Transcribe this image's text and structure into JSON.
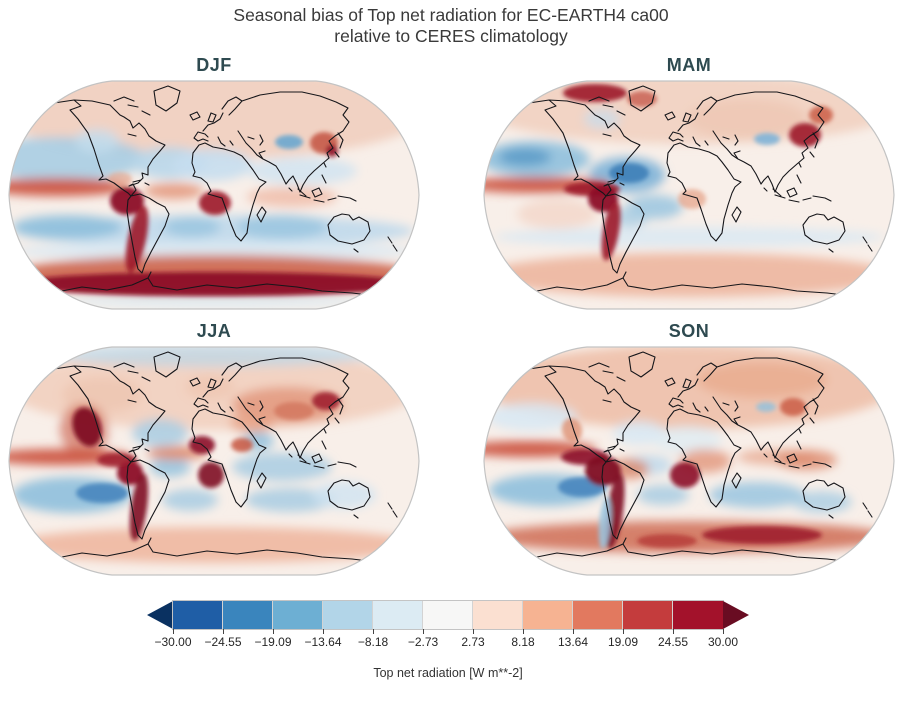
{
  "title": {
    "line1": "Seasonal bias of Top net radiation for EC-EARTH4 ca00",
    "line2": "relative to CERES climatology"
  },
  "colors": {
    "panel_label": "#2e4a50",
    "title_text": "#3a3a3a",
    "map_base": "#f8efe9",
    "map_outline": "#c3c3c3",
    "coastline": "#16161a"
  },
  "chart_data": {
    "type": "heatmap",
    "subtype": "filled-contour-world-maps",
    "projection": "Robinson",
    "title": "Seasonal bias of Top net radiation for EC-EARTH4 ca00 relative to CERES climatology",
    "legend_position": "bottom",
    "colorbar": {
      "label": "Top net radiation [W m**-2]",
      "tick_labels": [
        "−30.00",
        "−24.55",
        "−19.09",
        "−13.64",
        "−8.18",
        "−2.73",
        "2.73",
        "8.18",
        "13.64",
        "19.09",
        "24.55",
        "30.00"
      ],
      "levels": [
        -30.0,
        -24.55,
        -19.09,
        -13.64,
        -8.18,
        -2.73,
        2.73,
        8.18,
        13.64,
        19.09,
        24.55,
        30.0
      ],
      "segment_colors": [
        "#1f5ea6",
        "#3a85bd",
        "#6dafd3",
        "#b2d5e8",
        "#dcebf3",
        "#f7f7f6",
        "#fbe0d1",
        "#f6b392",
        "#e2795f",
        "#c43c3d",
        "#a3122b"
      ],
      "extend_left_color": "#0a3161",
      "extend_right_color": "#690c22"
    },
    "panels": [
      {
        "label": "DJF",
        "features": [
          [
            212,
            35,
            210,
            45,
            0,
            "#f0cdbc",
            0.85,
            0
          ],
          [
            60,
            80,
            85,
            22,
            0,
            "#a9cde3",
            0.9,
            0
          ],
          [
            168,
            84,
            38,
            16,
            0,
            "#b9d7ea",
            0.9,
            0
          ],
          [
            210,
            86,
            40,
            16,
            0,
            "#c7def0",
            0.9,
            0
          ],
          [
            300,
            92,
            55,
            14,
            0,
            "#cfe3f1",
            0.8,
            0
          ],
          [
            212,
            152,
            200,
            16,
            0,
            "#bcd8ec",
            0.85,
            0
          ],
          [
            65,
            148,
            55,
            12,
            0,
            "#8fc0dd",
            0.9,
            0
          ],
          [
            190,
            148,
            28,
            10,
            0,
            "#9ac6e0",
            0.85,
            0
          ],
          [
            280,
            148,
            45,
            12,
            0,
            "#9ac6e0",
            0.85,
            0
          ],
          [
            212,
            172,
            200,
            10,
            0,
            "#d8e9f4",
            0.8,
            0
          ],
          [
            212,
            196,
            205,
            20,
            0,
            "#cf6a52",
            0.95,
            0
          ],
          [
            55,
            108,
            72,
            9,
            0,
            "#cc5440",
            0.95,
            0
          ],
          [
            172,
            112,
            30,
            8,
            0,
            "#e39579",
            0.85,
            0
          ],
          [
            290,
            118,
            45,
            10,
            0,
            "#eeb49e",
            0.7,
            0
          ],
          [
            95,
            62,
            22,
            12,
            0,
            "#c6ddee",
            0.8,
            0
          ],
          [
            118,
            100,
            12,
            7,
            0,
            "#e6a084",
            0.6,
            1
          ],
          [
            212,
            222,
            150,
            8,
            0,
            "#dcebf4",
            0.7,
            0
          ],
          [
            212,
            205,
            200,
            12,
            0,
            "#8c1127",
            0.95,
            1
          ],
          [
            125,
            122,
            17,
            14,
            0,
            "#8c1127",
            0.95,
            1
          ],
          [
            135,
            160,
            9,
            34,
            12,
            "#9c1b2a",
            0.9,
            1
          ],
          [
            213,
            124,
            16,
            12,
            0,
            "#9c1b2a",
            0.9,
            1
          ],
          [
            287,
            63,
            14,
            7,
            0,
            "#6aa7cf",
            0.9,
            1
          ],
          [
            322,
            64,
            14,
            11,
            0,
            "#c04a3a",
            0.8,
            1
          ],
          [
            330,
            72,
            6,
            6,
            0,
            "#8c1127",
            0.85,
            1
          ]
        ]
      },
      {
        "label": "MAM",
        "features": [
          [
            212,
            30,
            210,
            35,
            0,
            "#f0cdbc",
            0.8,
            0
          ],
          [
            270,
            40,
            60,
            20,
            0,
            "#eec4b0",
            0.7,
            0
          ],
          [
            58,
            80,
            55,
            18,
            0,
            "#8fc0dd",
            0.9,
            0
          ],
          [
            48,
            78,
            26,
            9,
            0,
            "#5e9dc9",
            0.9,
            0
          ],
          [
            150,
            96,
            38,
            18,
            0,
            "#7fb4d8",
            0.9,
            0
          ],
          [
            152,
            94,
            20,
            10,
            0,
            "#3f7fb8",
            0.9,
            1
          ],
          [
            178,
            128,
            28,
            12,
            0,
            "#9ac6e0",
            0.85,
            0
          ],
          [
            152,
            138,
            20,
            10,
            0,
            "#a9cde3",
            0.8,
            0
          ],
          [
            212,
            158,
            195,
            10,
            0,
            "#d8e9f4",
            0.8,
            0
          ],
          [
            212,
            196,
            205,
            22,
            0,
            "#edb69f",
            0.9,
            0
          ],
          [
            80,
            135,
            40,
            15,
            0,
            "#f2d3c4",
            0.7,
            0
          ],
          [
            60,
            106,
            75,
            8,
            0,
            "#cc5440",
            0.95,
            0
          ],
          [
            125,
            40,
            18,
            10,
            0,
            "#c6ddee",
            0.7,
            0
          ],
          [
            115,
            110,
            28,
            7,
            0,
            "#9c1b2a",
            0.9,
            1
          ],
          [
            126,
            120,
            15,
            13,
            0,
            "#8c1127",
            0.95,
            1
          ],
          [
            134,
            152,
            8,
            30,
            10,
            "#9c1b2a",
            0.9,
            1
          ],
          [
            118,
            14,
            32,
            9,
            0,
            "#9c1b2a",
            0.9,
            1
          ],
          [
            165,
            20,
            15,
            8,
            0,
            "#c04a3a",
            0.7,
            1
          ],
          [
            328,
            56,
            16,
            12,
            0,
            "#9c1b2a",
            0.9,
            1
          ],
          [
            344,
            36,
            12,
            9,
            0,
            "#c85540",
            0.8,
            1
          ],
          [
            290,
            60,
            13,
            6,
            0,
            "#7fb4d8",
            0.9,
            1
          ],
          [
            215,
            120,
            14,
            10,
            0,
            "#e6a084",
            0.7,
            1
          ]
        ]
      },
      {
        "label": "JJA",
        "features": [
          [
            212,
            45,
            205,
            40,
            0,
            "#f0cab6",
            0.75,
            0
          ],
          [
            212,
            10,
            160,
            12,
            0,
            "#b9d7ea",
            0.7,
            0
          ],
          [
            158,
            88,
            28,
            14,
            0,
            "#a9cde3",
            0.85,
            0
          ],
          [
            168,
            122,
            20,
            10,
            0,
            "#8fc0dd",
            0.8,
            0
          ],
          [
            280,
            122,
            50,
            14,
            0,
            "#a9cde3",
            0.85,
            0
          ],
          [
            256,
            96,
            16,
            9,
            0,
            "#8fc0dd",
            0.85,
            0
          ],
          [
            70,
            150,
            60,
            18,
            0,
            "#8fc0dd",
            0.9,
            0
          ],
          [
            100,
            148,
            26,
            10,
            0,
            "#4886be",
            0.9,
            1
          ],
          [
            188,
            155,
            28,
            11,
            0,
            "#a9cde3",
            0.85,
            0
          ],
          [
            288,
            155,
            45,
            12,
            0,
            "#a9cde3",
            0.85,
            0
          ],
          [
            342,
            150,
            32,
            14,
            0,
            "#cfe3f1",
            0.8,
            0
          ],
          [
            212,
            200,
            205,
            18,
            0,
            "#eeb49c",
            0.85,
            0
          ],
          [
            58,
            112,
            72,
            8,
            0,
            "#cc5440",
            0.95,
            0
          ],
          [
            175,
            108,
            30,
            7,
            0,
            "#dc8465",
            0.85,
            0
          ],
          [
            285,
            60,
            55,
            18,
            0,
            "#e09074",
            0.75,
            0
          ],
          [
            250,
            78,
            22,
            10,
            0,
            "#e6a084",
            0.8,
            0
          ],
          [
            100,
            50,
            40,
            18,
            0,
            "#eec4b0",
            0.75,
            0
          ],
          [
            208,
            42,
            25,
            12,
            0,
            "#eec4b0",
            0.7,
            0
          ],
          [
            82,
            85,
            24,
            26,
            -15,
            "#c85540",
            0.6,
            0
          ],
          [
            85,
            82,
            14,
            20,
            -18,
            "#7f0d22",
            0.95,
            1
          ],
          [
            128,
            128,
            13,
            12,
            0,
            "#8c1127",
            0.95,
            1
          ],
          [
            137,
            162,
            8,
            34,
            8,
            "#7f0d22",
            0.9,
            1
          ],
          [
            200,
            100,
            13,
            9,
            0,
            "#8c1127",
            0.9,
            1
          ],
          [
            209,
            130,
            13,
            13,
            0,
            "#7f0d22",
            0.9,
            1
          ],
          [
            240,
            100,
            11,
            7,
            0,
            "#c85540",
            0.85,
            1
          ],
          [
            324,
            56,
            14,
            9,
            0,
            "#9c1b2a",
            0.85,
            1
          ],
          [
            292,
            66,
            20,
            9,
            0,
            "#d2745c",
            0.8,
            1
          ],
          [
            115,
            115,
            20,
            7,
            0,
            "#9c1b2a",
            0.85,
            1
          ]
        ]
      },
      {
        "label": "SON",
        "features": [
          [
            212,
            42,
            205,
            42,
            0,
            "#eec0aa",
            0.9,
            0
          ],
          [
            285,
            35,
            65,
            18,
            0,
            "#e8a98c",
            0.75,
            0
          ],
          [
            55,
            72,
            45,
            14,
            0,
            "#d8e9f4",
            0.85,
            0
          ],
          [
            162,
            88,
            26,
            12,
            0,
            "#d8e9f4",
            0.85,
            0
          ],
          [
            170,
            120,
            25,
            10,
            0,
            "#bcd8ec",
            0.8,
            0
          ],
          [
            210,
            95,
            35,
            14,
            0,
            "#dcebf4",
            0.7,
            0
          ],
          [
            70,
            145,
            58,
            16,
            0,
            "#8fc0dd",
            0.9,
            0
          ],
          [
            105,
            142,
            24,
            10,
            0,
            "#4886be",
            0.9,
            1
          ],
          [
            186,
            150,
            26,
            10,
            0,
            "#a9cde3",
            0.85,
            0
          ],
          [
            280,
            150,
            48,
            13,
            0,
            "#9ac6e0",
            0.85,
            0
          ],
          [
            345,
            157,
            30,
            11,
            0,
            "#a9cde3",
            0.8,
            0
          ],
          [
            212,
            192,
            205,
            16,
            0,
            "#d2745c",
            0.9,
            0
          ],
          [
            52,
            104,
            68,
            8,
            0,
            "#cc5440",
            0.95,
            0
          ],
          [
            152,
            124,
            20,
            10,
            0,
            "#dc8465",
            0.8,
            0
          ],
          [
            228,
            116,
            26,
            12,
            0,
            "#e09074",
            0.75,
            0
          ],
          [
            300,
            112,
            40,
            8,
            0,
            "#e6a084",
            0.7,
            0
          ],
          [
            330,
            115,
            30,
            10,
            0,
            "#dc8465",
            0.75,
            0
          ],
          [
            108,
            112,
            24,
            8,
            0,
            "#8c1127",
            0.9,
            1
          ],
          [
            126,
            126,
            18,
            15,
            0,
            "#7f0d22",
            0.95,
            1
          ],
          [
            138,
            166,
            8,
            38,
            8,
            "#7f0d22",
            0.9,
            1
          ],
          [
            208,
            130,
            15,
            13,
            0,
            "#8c1127",
            0.9,
            1
          ],
          [
            285,
            190,
            60,
            9,
            0,
            "#9c1b2a",
            0.85,
            1
          ],
          [
            190,
            196,
            30,
            7,
            0,
            "#b03030",
            0.7,
            1
          ],
          [
            128,
            178,
            6,
            26,
            5,
            "#9ac6e0",
            0.85,
            1
          ],
          [
            316,
            62,
            13,
            9,
            0,
            "#c85540",
            0.8,
            1
          ],
          [
            289,
            62,
            10,
            5,
            0,
            "#8fc0dd",
            0.8,
            1
          ],
          [
            95,
            85,
            10,
            12,
            -15,
            "#dc8465",
            0.7,
            1
          ]
        ]
      }
    ]
  }
}
